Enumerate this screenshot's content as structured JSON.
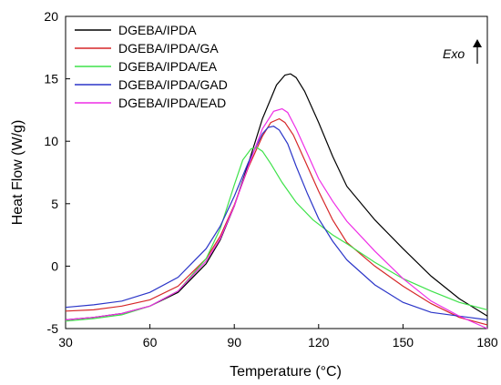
{
  "chart_data": {
    "type": "line",
    "xlabel": "Temperature (°C)",
    "ylabel": "Heat Flow (W/g)",
    "xlim": [
      30,
      180
    ],
    "ylim": [
      -5,
      20
    ],
    "xticks": [
      30,
      60,
      90,
      120,
      150,
      180
    ],
    "yticks": [
      -5,
      0,
      5,
      10,
      15,
      20
    ],
    "grid": false,
    "legend_position": "top-left",
    "annotation": "Exo",
    "series": [
      {
        "name": "DGEBA/IPDA",
        "color": "#000000",
        "x": [
          30,
          40,
          50,
          60,
          70,
          80,
          85,
          90,
          95,
          100,
          105,
          108,
          110,
          112,
          115,
          120,
          125,
          130,
          140,
          150,
          160,
          170,
          180
        ],
        "y": [
          -4.3,
          -4.1,
          -3.8,
          -3.2,
          -2.1,
          0.2,
          2.1,
          4.8,
          8.2,
          11.8,
          14.5,
          15.3,
          15.4,
          15.1,
          14.0,
          11.5,
          8.8,
          6.4,
          3.7,
          1.4,
          -0.8,
          -2.6,
          -4.0
        ]
      },
      {
        "name": "DGEBA/IPDA/GA",
        "color": "#d62728",
        "x": [
          30,
          40,
          50,
          60,
          70,
          80,
          85,
          90,
          95,
          100,
          103,
          106,
          108,
          111,
          115,
          120,
          125,
          130,
          140,
          150,
          160,
          170,
          180
        ],
        "y": [
          -3.6,
          -3.5,
          -3.2,
          -2.7,
          -1.6,
          0.6,
          2.4,
          4.9,
          7.9,
          10.4,
          11.5,
          11.8,
          11.5,
          10.5,
          8.5,
          6.0,
          3.7,
          1.9,
          0.0,
          -1.6,
          -3.0,
          -4.1,
          -4.7
        ]
      },
      {
        "name": "DGEBA/IPDA/EA",
        "color": "#3ee24a",
        "x": [
          30,
          40,
          50,
          60,
          70,
          80,
          85,
          90,
          93,
          96,
          98,
          100,
          103,
          107,
          112,
          118,
          125,
          130,
          140,
          150,
          160,
          170,
          180
        ],
        "y": [
          -4.4,
          -4.2,
          -3.9,
          -3.2,
          -2.0,
          0.6,
          3.0,
          6.5,
          8.5,
          9.4,
          9.5,
          9.2,
          8.2,
          6.7,
          5.1,
          3.7,
          2.5,
          1.8,
          0.3,
          -1.0,
          -2.0,
          -2.9,
          -3.5
        ]
      },
      {
        "name": "DGEBA/IPDA/GAD",
        "color": "#2b35c8",
        "x": [
          30,
          40,
          50,
          60,
          70,
          80,
          85,
          90,
          95,
          100,
          102,
          104,
          106,
          109,
          112,
          116,
          120,
          125,
          130,
          140,
          150,
          160,
          170,
          180
        ],
        "y": [
          -3.3,
          -3.1,
          -2.8,
          -2.1,
          -0.9,
          1.4,
          3.2,
          5.6,
          8.3,
          10.6,
          11.1,
          11.2,
          10.9,
          9.8,
          8.0,
          5.8,
          3.8,
          2.0,
          0.5,
          -1.5,
          -2.9,
          -3.7,
          -4.0,
          -4.3
        ]
      },
      {
        "name": "DGEBA/IPDA/EAD",
        "color": "#ee2de6",
        "x": [
          30,
          40,
          50,
          60,
          70,
          80,
          85,
          90,
          95,
          100,
          104,
          107,
          109,
          112,
          116,
          120,
          125,
          130,
          140,
          150,
          160,
          170,
          180
        ],
        "y": [
          -4.3,
          -4.1,
          -3.8,
          -3.2,
          -2.0,
          0.4,
          2.2,
          4.8,
          8.0,
          11.0,
          12.4,
          12.6,
          12.3,
          11.0,
          9.0,
          7.0,
          5.2,
          3.6,
          1.2,
          -1.0,
          -2.8,
          -4.0,
          -5.0
        ]
      }
    ]
  }
}
